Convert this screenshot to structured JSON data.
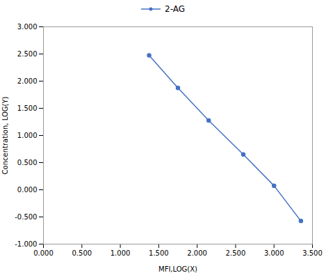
{
  "chart_data": {
    "type": "line",
    "x": [
      1.375,
      1.75,
      2.15,
      2.6,
      3.0,
      3.35
    ],
    "series": [
      {
        "name": "2-AG",
        "color": "#4472C4",
        "marker": "circle",
        "values": [
          2.475,
          1.875,
          1.275,
          0.65,
          0.075,
          -0.575
        ]
      }
    ],
    "xlabel": "MFI,LOG(X)",
    "ylabel": "Concentration, LOG(Y)",
    "xlim": [
      0.0,
      3.5
    ],
    "ylim": [
      -1.0,
      3.0
    ],
    "xticks": [
      {
        "value": 0.0,
        "label": "0.000"
      },
      {
        "value": 0.5,
        "label": "0.500"
      },
      {
        "value": 1.0,
        "label": "1.000"
      },
      {
        "value": 1.5,
        "label": "1.500"
      },
      {
        "value": 2.0,
        "label": "2.000"
      },
      {
        "value": 2.5,
        "label": "2.500"
      },
      {
        "value": 3.0,
        "label": "3.000"
      },
      {
        "value": 3.5,
        "label": "3.500"
      }
    ],
    "yticks": [
      {
        "value": -1.0,
        "label": "-1.000"
      },
      {
        "value": -0.5,
        "label": "-0.500"
      },
      {
        "value": 0.0,
        "label": "0.000"
      },
      {
        "value": 0.5,
        "label": "0.500"
      },
      {
        "value": 1.0,
        "label": "1.000"
      },
      {
        "value": 1.5,
        "label": "1.500"
      },
      {
        "value": 2.0,
        "label": "2.000"
      },
      {
        "value": 2.5,
        "label": "2.500"
      },
      {
        "value": 3.0,
        "label": "3.000"
      }
    ],
    "grid": false,
    "legend": "top"
  }
}
